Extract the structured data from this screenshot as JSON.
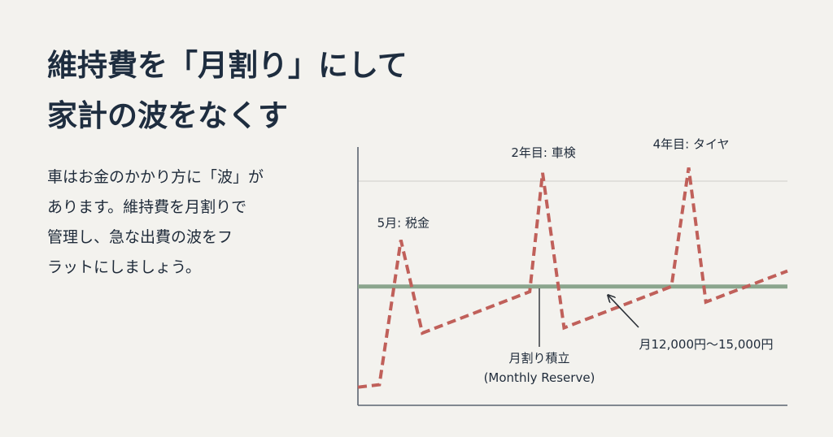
{
  "title": {
    "line1": "維持費を「月割り」にして",
    "line2": "家計の波をなくす"
  },
  "description": {
    "lines": [
      "車はお金のかかり方に「波」が",
      "あります。維持費を月割りで",
      "管理し、急な出費の波をフ",
      "ラットにしましょう。"
    ]
  },
  "colors": {
    "background": "#f3f2ee",
    "text": "#1e2d3f",
    "expense_line": "#c0605a",
    "reserve_line": "#8aa58d",
    "axis": "#5b6470",
    "grid": "#d6d6d2"
  },
  "chart_data": {
    "type": "line",
    "title": "",
    "xlabel": "",
    "ylabel": "",
    "grid": "single horizontal reference line at the peak level",
    "series": [
      {
        "style": "dashed",
        "points": [
          [
            0,
            0.07
          ],
          [
            5,
            0.08
          ],
          [
            10,
            0.64
          ],
          [
            15,
            0.28
          ],
          [
            40,
            0.44
          ],
          [
            43,
            0.9
          ],
          [
            48,
            0.3
          ],
          [
            73,
            0.46
          ],
          [
            77,
            0.92
          ],
          [
            81,
            0.4
          ],
          [
            100,
            0.52
          ]
        ]
      },
      {
        "style": "solid",
        "points": [
          [
            0,
            0.46
          ],
          [
            100,
            0.46
          ]
        ]
      }
    ],
    "annotations": [
      {
        "text": "5月: 税金",
        "x": 10,
        "y": 0.64
      },
      {
        "text": "2年目: 車検",
        "x": 43,
        "y": 0.9
      },
      {
        "text": "4年目: タイヤ",
        "x": 77,
        "y": 0.92
      },
      {
        "text": "月12,000円〜15,000円",
        "x": 58,
        "y": 0.41
      }
    ],
    "reserve_label": {
      "line1": "月割り積立",
      "line2": "(Monthly Reserve)"
    }
  }
}
